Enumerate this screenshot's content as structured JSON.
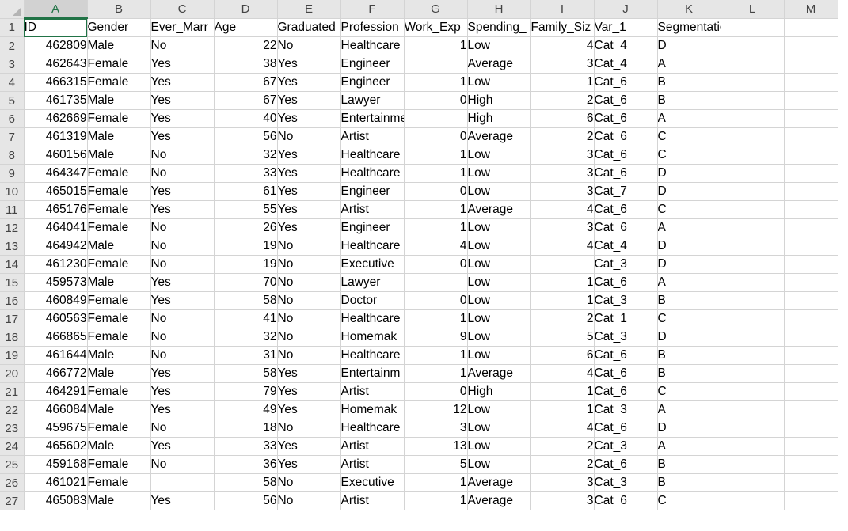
{
  "accent_color": "#217346",
  "column_letters": [
    "A",
    "B",
    "C",
    "D",
    "E",
    "F",
    "G",
    "H",
    "I",
    "J",
    "K",
    "L",
    "M"
  ],
  "active_column": "A",
  "rows": [
    [
      "ID",
      "Gender",
      "Ever_Marr",
      "Age",
      "Graduated",
      "Profession",
      "Work_Exp",
      "Spending_",
      "Family_Siz",
      "Var_1",
      "Segmentation",
      "",
      ""
    ],
    [
      "462809",
      "Male",
      "No",
      "22",
      "No",
      "Healthcare",
      "1",
      "Low",
      "4",
      "Cat_4",
      "D",
      "",
      ""
    ],
    [
      "462643",
      "Female",
      "Yes",
      "38",
      "Yes",
      "Engineer",
      "",
      "Average",
      "3",
      "Cat_4",
      "A",
      "",
      ""
    ],
    [
      "466315",
      "Female",
      "Yes",
      "67",
      "Yes",
      "Engineer",
      "1",
      "Low",
      "1",
      "Cat_6",
      "B",
      "",
      ""
    ],
    [
      "461735",
      "Male",
      "Yes",
      "67",
      "Yes",
      "Lawyer",
      "0",
      "High",
      "2",
      "Cat_6",
      "B",
      "",
      ""
    ],
    [
      "462669",
      "Female",
      "Yes",
      "40",
      "Yes",
      "Entertainment",
      "",
      "High",
      "6",
      "Cat_6",
      "A",
      "",
      ""
    ],
    [
      "461319",
      "Male",
      "Yes",
      "56",
      "No",
      "Artist",
      "0",
      "Average",
      "2",
      "Cat_6",
      "C",
      "",
      ""
    ],
    [
      "460156",
      "Male",
      "No",
      "32",
      "Yes",
      "Healthcare",
      "1",
      "Low",
      "3",
      "Cat_6",
      "C",
      "",
      ""
    ],
    [
      "464347",
      "Female",
      "No",
      "33",
      "Yes",
      "Healthcare",
      "1",
      "Low",
      "3",
      "Cat_6",
      "D",
      "",
      ""
    ],
    [
      "465015",
      "Female",
      "Yes",
      "61",
      "Yes",
      "Engineer",
      "0",
      "Low",
      "3",
      "Cat_7",
      "D",
      "",
      ""
    ],
    [
      "465176",
      "Female",
      "Yes",
      "55",
      "Yes",
      "Artist",
      "1",
      "Average",
      "4",
      "Cat_6",
      "C",
      "",
      ""
    ],
    [
      "464041",
      "Female",
      "No",
      "26",
      "Yes",
      "Engineer",
      "1",
      "Low",
      "3",
      "Cat_6",
      "A",
      "",
      ""
    ],
    [
      "464942",
      "Male",
      "No",
      "19",
      "No",
      "Healthcare",
      "4",
      "Low",
      "4",
      "Cat_4",
      "D",
      "",
      ""
    ],
    [
      "461230",
      "Female",
      "No",
      "19",
      "No",
      "Executive",
      "0",
      "Low",
      "",
      "Cat_3",
      "D",
      "",
      ""
    ],
    [
      "459573",
      "Male",
      "Yes",
      "70",
      "No",
      "Lawyer",
      "",
      "Low",
      "1",
      "Cat_6",
      "A",
      "",
      ""
    ],
    [
      "460849",
      "Female",
      "Yes",
      "58",
      "No",
      "Doctor",
      "0",
      "Low",
      "1",
      "Cat_3",
      "B",
      "",
      ""
    ],
    [
      "460563",
      "Female",
      "No",
      "41",
      "No",
      "Healthcare",
      "1",
      "Low",
      "2",
      "Cat_1",
      "C",
      "",
      ""
    ],
    [
      "466865",
      "Female",
      "No",
      "32",
      "No",
      "Homemak",
      "9",
      "Low",
      "5",
      "Cat_3",
      "D",
      "",
      ""
    ],
    [
      "461644",
      "Male",
      "No",
      "31",
      "No",
      "Healthcare",
      "1",
      "Low",
      "6",
      "Cat_6",
      "B",
      "",
      ""
    ],
    [
      "466772",
      "Male",
      "Yes",
      "58",
      "Yes",
      "Entertainm",
      "1",
      "Average",
      "4",
      "Cat_6",
      "B",
      "",
      ""
    ],
    [
      "464291",
      "Female",
      "Yes",
      "79",
      "Yes",
      "Artist",
      "0",
      "High",
      "1",
      "Cat_6",
      "C",
      "",
      ""
    ],
    [
      "466084",
      "Male",
      "Yes",
      "49",
      "Yes",
      "Homemak",
      "12",
      "Low",
      "1",
      "Cat_3",
      "A",
      "",
      ""
    ],
    [
      "459675",
      "Female",
      "No",
      "18",
      "No",
      "Healthcare",
      "3",
      "Low",
      "4",
      "Cat_6",
      "D",
      "",
      ""
    ],
    [
      "465602",
      "Male",
      "Yes",
      "33",
      "Yes",
      "Artist",
      "13",
      "Low",
      "2",
      "Cat_3",
      "A",
      "",
      ""
    ],
    [
      "459168",
      "Female",
      "No",
      "36",
      "Yes",
      "Artist",
      "5",
      "Low",
      "2",
      "Cat_6",
      "B",
      "",
      ""
    ],
    [
      "461021",
      "Female",
      "",
      "58",
      "No",
      "Executive",
      "1",
      "Average",
      "3",
      "Cat_3",
      "B",
      "",
      ""
    ],
    [
      "465083",
      "Male",
      "Yes",
      "56",
      "No",
      "Artist",
      "1",
      "Average",
      "3",
      "Cat_6",
      "C",
      "",
      ""
    ]
  ]
}
